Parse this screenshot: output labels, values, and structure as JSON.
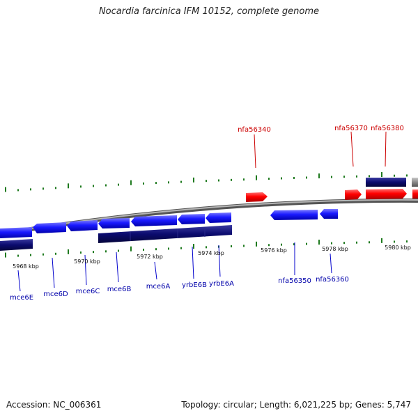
{
  "title": "Nocardia farcinica IFM 10152, complete genome",
  "footer": {
    "accession": "Accession: NC_006361",
    "summary": "Topology: circular; Length: 6,021,225 bp; Genes: 5,747"
  },
  "colors": {
    "forward_gene": "#ff0000",
    "reverse_gene": "#0000ff",
    "dark_feature": "#0b0b6e",
    "backbone": "#8f8f8f",
    "tick": "#1f7a1f",
    "forward_label": "#cc0000",
    "reverse_label": "#0000aa"
  },
  "axis": {
    "unit": "kbp",
    "tick_labels": [
      "5968 kbp",
      "5970 kbp",
      "5972 kbp",
      "5974 kbp",
      "5976 kbp",
      "5978 kbp",
      "5980 kbp"
    ]
  },
  "forward_labels": [
    "nfa56340",
    "nfa56370",
    "nfa56380"
  ],
  "reverse_labels": [
    "mce6E",
    "mce6D",
    "mce6C",
    "mce6B",
    "mce6A",
    "yrbE6B",
    "yrbE6A",
    "nfa56350",
    "nfa56360"
  ]
}
